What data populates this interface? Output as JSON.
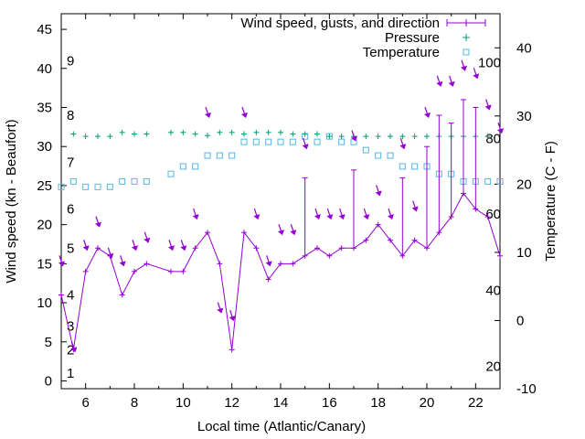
{
  "chart_data": {
    "type": "line",
    "xlabel": "Local time (Atlantic/Canary)",
    "ylabel": "Wind speed (kn - Beaufort)",
    "y2label": "Temperature (C - F)",
    "xlim": [
      5,
      23
    ],
    "ylim": [
      -1,
      47
    ],
    "y2lim": [
      -10,
      45
    ],
    "x_ticks": [
      6,
      8,
      10,
      12,
      14,
      16,
      18,
      20,
      22
    ],
    "y_ticks": [
      0,
      5,
      10,
      15,
      20,
      25,
      30,
      35,
      40,
      45
    ],
    "y2_ticks": [
      -10,
      0,
      10,
      20,
      30,
      40
    ],
    "beaufort_labels": [
      {
        "label": "1",
        "y": 1
      },
      {
        "label": "2",
        "y": 4
      },
      {
        "label": "3",
        "y": 7
      },
      {
        "label": "4",
        "y": 11
      },
      {
        "label": "5",
        "y": 17
      },
      {
        "label": "6",
        "y": 22
      },
      {
        "label": "7",
        "y": 28
      },
      {
        "label": "8",
        "y": 34
      },
      {
        "label": "9",
        "y": 41
      }
    ],
    "fahrenheit_labels": [
      {
        "label": "100",
        "y2": 37.8
      },
      {
        "label": "80",
        "y2": 26.7
      },
      {
        "label": "60",
        "y2": 15.6
      },
      {
        "label": "40",
        "y2": 4.4
      },
      {
        "label": "20",
        "y2": -6.7
      }
    ],
    "series": [
      {
        "name": "Wind speed, gusts, and direction",
        "color": "#9400d3",
        "x": [
          5.0,
          5.5,
          6.0,
          6.5,
          7.0,
          7.5,
          8.0,
          8.5,
          9.5,
          10.0,
          10.5,
          11.0,
          11.5,
          12.0,
          12.5,
          13.0,
          13.5,
          14.0,
          14.5,
          15.0,
          15.5,
          16.0,
          16.5,
          17.0,
          17.5,
          18.0,
          18.5,
          19.0,
          19.5,
          20.0,
          20.5,
          21.0,
          21.5,
          22.0,
          22.5,
          23.0
        ],
        "speed": [
          11,
          4,
          14,
          17,
          16,
          11,
          14,
          15,
          14,
          14,
          17,
          19,
          15,
          4,
          19,
          17,
          13,
          15,
          15,
          16,
          17,
          16,
          17,
          17,
          18,
          20,
          18,
          16,
          18,
          17,
          19,
          21,
          24,
          22,
          21,
          16
        ],
        "gust": [
          11,
          4,
          14,
          17,
          16,
          11,
          14,
          15,
          14,
          14,
          17,
          19,
          15,
          4,
          19,
          17,
          13,
          15,
          15,
          26,
          17,
          16,
          17,
          27,
          18,
          20,
          18,
          26,
          18,
          30,
          34,
          33,
          36,
          35,
          21,
          16
        ],
        "arrow_y": [
          15,
          4,
          17,
          20,
          16,
          15,
          17,
          18,
          17,
          17,
          21,
          34,
          9,
          8,
          34,
          21,
          15,
          19,
          19,
          30,
          21,
          21,
          21,
          31,
          21,
          24,
          21,
          30,
          22,
          34,
          38,
          38,
          40,
          39,
          35,
          32
        ]
      },
      {
        "name": "Pressure",
        "color": "#009e73",
        "x": [
          5.5,
          6.0,
          6.5,
          7.0,
          7.5,
          8.0,
          8.5,
          9.5,
          10.0,
          10.5,
          11.0,
          11.5,
          12.0,
          12.5,
          13.0,
          13.5,
          14.0,
          14.5,
          15.0,
          15.5,
          16.0,
          16.5,
          17.0,
          17.5,
          18.0,
          18.5,
          19.0,
          19.5,
          20.0,
          20.5,
          21.0,
          21.5,
          22.0,
          22.5
        ],
        "values": [
          31.6,
          31.3,
          31.3,
          31.3,
          31.8,
          31.6,
          31.6,
          31.8,
          31.8,
          31.6,
          31.4,
          31.8,
          31.8,
          31.6,
          31.8,
          31.8,
          31.8,
          31.6,
          31.6,
          31.6,
          31.3,
          31.3,
          31.3,
          31.3,
          31.3,
          31.3,
          31.3,
          31.3,
          31.3,
          31.3,
          31.3,
          31.3,
          31.3,
          31.3
        ]
      },
      {
        "name": "Temperature",
        "color": "#56b4e9",
        "x": [
          5.0,
          5.5,
          6.0,
          6.5,
          7.0,
          7.5,
          8.0,
          8.5,
          9.5,
          10.0,
          10.5,
          11.0,
          11.5,
          12.0,
          12.5,
          13.0,
          13.5,
          14.0,
          14.5,
          15.0,
          15.5,
          16.0,
          16.5,
          17.0,
          17.5,
          18.0,
          18.5,
          19.0,
          19.5,
          20.0,
          20.5,
          21.0,
          21.5,
          22.0,
          22.5,
          23.0
        ],
        "values": [
          19.6,
          20.4,
          19.6,
          19.6,
          19.6,
          20.4,
          20.4,
          20.4,
          21.5,
          22.6,
          22.6,
          24.2,
          24.2,
          24.2,
          26.2,
          26.2,
          26.2,
          26.2,
          26.2,
          27.0,
          26.2,
          27.0,
          26.2,
          26.2,
          25.0,
          24.2,
          24.2,
          22.6,
          22.6,
          22.6,
          21.5,
          21.5,
          20.4,
          20.4,
          20.4,
          20.4
        ]
      }
    ],
    "legend_position": "top-right"
  }
}
